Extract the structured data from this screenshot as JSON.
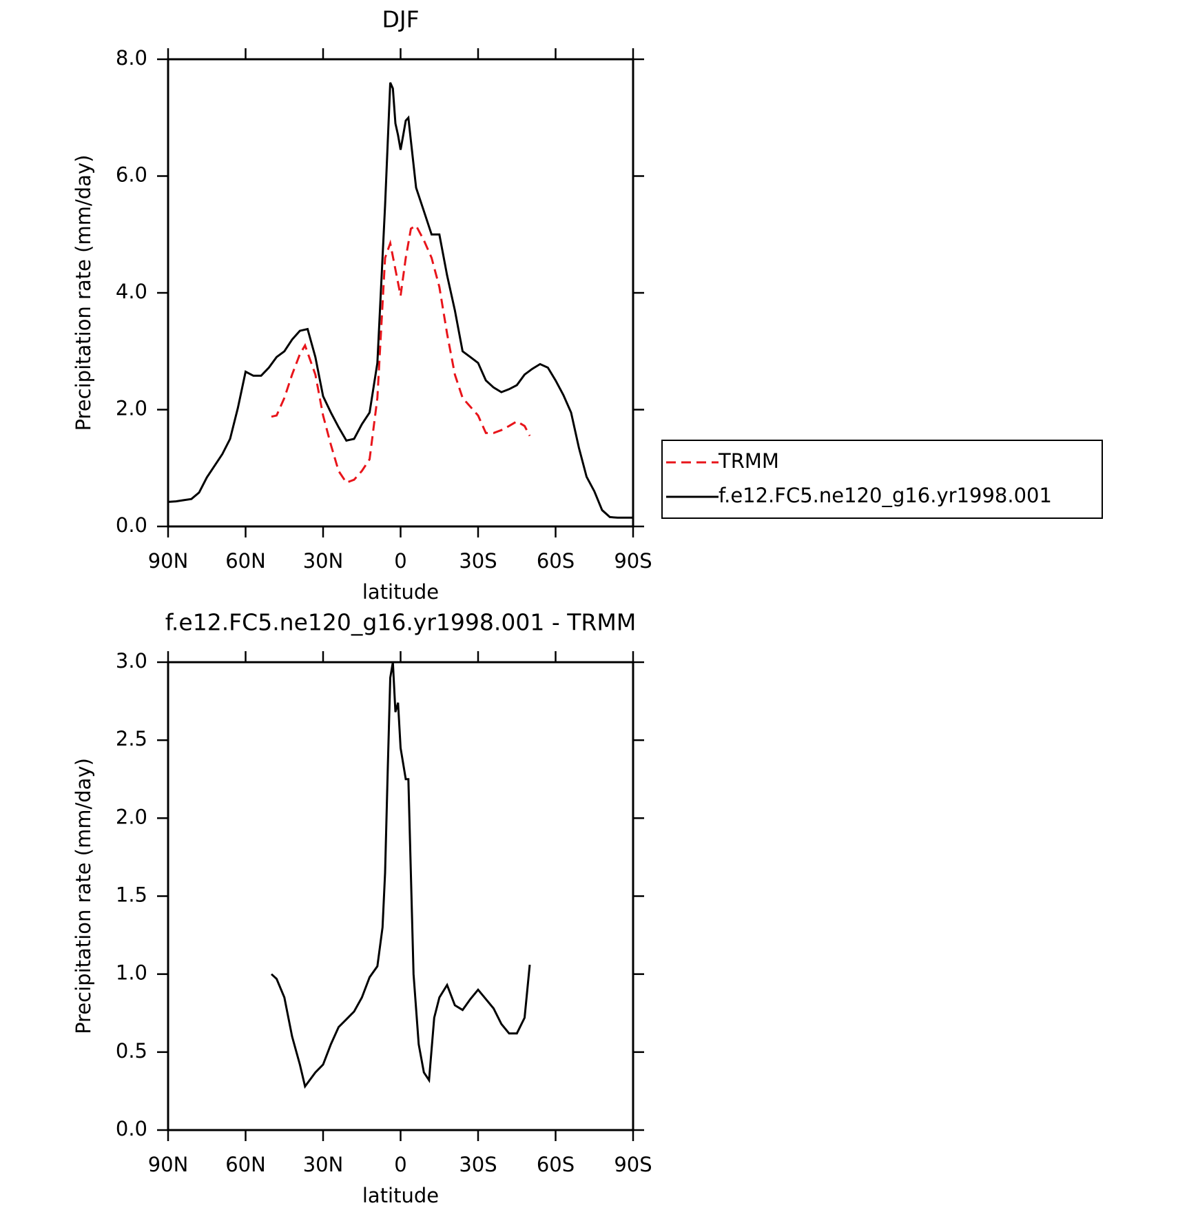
{
  "chart_data": [
    {
      "type": "line",
      "title": "DJF",
      "x_label": "latitude",
      "y_label": "Precipitation rate (mm/day)",
      "xlim": [
        90,
        -90
      ],
      "xticks": [
        {
          "value": 90,
          "label": "90N"
        },
        {
          "value": 60,
          "label": "60N"
        },
        {
          "value": 30,
          "label": "30N"
        },
        0,
        {
          "value": -30,
          "label": "30S"
        },
        {
          "value": -60,
          "label": "60S"
        },
        {
          "value": -90,
          "label": "90S"
        }
      ],
      "ylim": [
        0,
        8
      ],
      "yticks": [
        {
          "value": 0,
          "label": "0.0"
        },
        {
          "value": 2,
          "label": "2.0"
        },
        {
          "value": 4,
          "label": "4.0"
        },
        {
          "value": 6,
          "label": "6.0"
        },
        {
          "value": 8,
          "label": "8.0"
        }
      ],
      "legend": "right",
      "series": [
        {
          "name": "TRMM",
          "color": "#e8141a",
          "linestyle": "dashed",
          "x": [
            50,
            48,
            45,
            42,
            39,
            37,
            33,
            30,
            27,
            24,
            21,
            18,
            15,
            12,
            9,
            6,
            4,
            2,
            0,
            -2,
            -4,
            -6,
            -9,
            -12,
            -15,
            -18,
            -21,
            -24,
            -27,
            -30,
            -33,
            -36,
            -39,
            -42,
            -45,
            -48,
            -50
          ],
          "values": [
            1.88,
            1.9,
            2.2,
            2.6,
            2.95,
            3.1,
            2.6,
            1.9,
            1.4,
            0.95,
            0.75,
            0.8,
            0.95,
            1.15,
            2.2,
            4.6,
            4.85,
            4.4,
            3.95,
            4.6,
            5.1,
            5.15,
            4.9,
            4.6,
            4.1,
            3.3,
            2.6,
            2.2,
            2.05,
            1.9,
            1.6,
            1.6,
            1.65,
            1.72,
            1.8,
            1.72,
            1.55
          ]
        },
        {
          "name": "f.e12.FC5.ne120_g16.yr1998.001",
          "color": "#000000",
          "linestyle": "solid",
          "x": [
            90,
            87,
            84,
            81,
            78,
            75,
            72,
            69,
            66,
            63,
            60,
            57,
            54,
            51,
            48,
            45,
            42,
            39,
            36,
            33,
            30,
            27,
            24,
            21,
            18,
            15,
            12,
            9,
            6,
            4,
            3,
            2,
            1,
            0,
            -1,
            -2,
            -3,
            -4,
            -6,
            -9,
            -12,
            -15,
            -18,
            -21,
            -24,
            -27,
            -30,
            -33,
            -36,
            -39,
            -42,
            -45,
            -48,
            -51,
            -54,
            -57,
            -60,
            -63,
            -66,
            -69,
            -72,
            -75,
            -78,
            -81,
            -84,
            -87,
            -90
          ],
          "values": [
            0.42,
            0.43,
            0.45,
            0.47,
            0.58,
            0.84,
            1.04,
            1.24,
            1.5,
            2.03,
            2.65,
            2.58,
            2.58,
            2.72,
            2.9,
            3.0,
            3.2,
            3.35,
            3.38,
            2.9,
            2.23,
            1.95,
            1.7,
            1.47,
            1.5,
            1.75,
            1.95,
            2.8,
            5.5,
            7.6,
            7.5,
            6.9,
            6.7,
            6.45,
            6.7,
            6.95,
            7.0,
            6.6,
            5.8,
            5.4,
            5.0,
            5.0,
            4.3,
            3.7,
            3.0,
            2.9,
            2.8,
            2.5,
            2.38,
            2.3,
            2.35,
            2.42,
            2.6,
            2.7,
            2.78,
            2.72,
            2.5,
            2.25,
            1.95,
            1.35,
            0.85,
            0.6,
            0.28,
            0.16,
            0.15,
            0.15,
            0.15
          ]
        }
      ]
    },
    {
      "type": "line",
      "title": "f.e12.FC5.ne120_g16.yr1998.001 - TRMM",
      "x_label": "latitude",
      "y_label": "Precipitation rate (mm/day)",
      "xlim": [
        90,
        -90
      ],
      "xticks": [
        {
          "value": 90,
          "label": "90N"
        },
        {
          "value": 60,
          "label": "60N"
        },
        {
          "value": 30,
          "label": "30N"
        },
        0,
        {
          "value": -30,
          "label": "30S"
        },
        {
          "value": -60,
          "label": "60S"
        },
        {
          "value": -90,
          "label": "90S"
        }
      ],
      "ylim": [
        0,
        3
      ],
      "yticks": [
        {
          "value": 0,
          "label": "0.0"
        },
        {
          "value": 0.5,
          "label": "0.5"
        },
        {
          "value": 1,
          "label": "1.0"
        },
        {
          "value": 1.5,
          "label": "1.5"
        },
        {
          "value": 2,
          "label": "2.0"
        },
        {
          "value": 2.5,
          "label": "2.5"
        },
        {
          "value": 3,
          "label": "3.0"
        }
      ],
      "series": [
        {
          "color": "#000000",
          "linestyle": "solid",
          "x": [
            50,
            48,
            45,
            42,
            39,
            37,
            33,
            30,
            27,
            24,
            21,
            18,
            15,
            12,
            9,
            7,
            6,
            5,
            4,
            3,
            2,
            1,
            0,
            -2,
            -3,
            -5,
            -7,
            -9,
            -11,
            -13,
            -15,
            -18,
            -21,
            -24,
            -27,
            -30,
            -33,
            -36,
            -39,
            -42,
            -45,
            -48,
            -50
          ],
          "values": [
            1.0,
            0.97,
            0.85,
            0.6,
            0.42,
            0.28,
            0.37,
            0.42,
            0.55,
            0.66,
            0.71,
            0.76,
            0.85,
            0.98,
            1.05,
            1.3,
            1.65,
            2.3,
            2.9,
            3.0,
            2.68,
            2.74,
            2.45,
            2.25,
            2.25,
            1.0,
            0.55,
            0.37,
            0.32,
            0.72,
            0.85,
            0.93,
            0.8,
            0.77,
            0.84,
            0.9,
            0.84,
            0.78,
            0.68,
            0.62,
            0.62,
            0.72,
            1.06
          ]
        }
      ]
    }
  ]
}
